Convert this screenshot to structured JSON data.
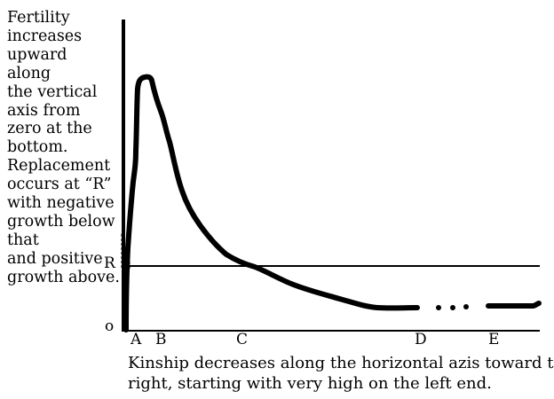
{
  "left_note": [
    "Fertility",
    "increases",
    "upward",
    "along",
    "the vertical",
    "axis from",
    "zero at the",
    "bottom.",
    "Replacement",
    "occurs at “R”",
    "with negative",
    "growth below",
    "that",
    "and positive",
    "growth above."
  ],
  "r_label": "R",
  "zero_label": "o",
  "x_letters": [
    "A",
    "B",
    "C",
    "D",
    "E"
  ],
  "caption": [
    "Kinship decreases along the horizontal azis toward the",
    "right, starting with very high on the left end."
  ]
}
